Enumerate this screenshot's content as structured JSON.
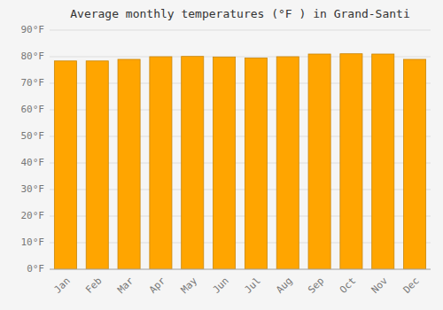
{
  "chart_data": {
    "type": "bar",
    "title": "Average monthly temperatures (°F ) in Grand-Santi",
    "categories": [
      "Jan",
      "Feb",
      "Mar",
      "Apr",
      "May",
      "Jun",
      "Jul",
      "Aug",
      "Sep",
      "Oct",
      "Nov",
      "Dec"
    ],
    "values": [
      78.4,
      78.4,
      79.0,
      80.0,
      80.1,
      79.9,
      79.5,
      80.0,
      81.0,
      81.1,
      81.0,
      79.0
    ],
    "color": "#FFA500",
    "ylim": [
      0,
      90
    ],
    "yticks": [
      {
        "value": 0,
        "label": "0°F"
      },
      {
        "value": 10,
        "label": "10°F"
      },
      {
        "value": 20,
        "label": "20°F"
      },
      {
        "value": 30,
        "label": "30°F"
      },
      {
        "value": 40,
        "label": "40°F"
      },
      {
        "value": 50,
        "label": "50°F"
      },
      {
        "value": 60,
        "label": "60°F"
      },
      {
        "value": 70,
        "label": "70°F"
      },
      {
        "value": 80,
        "label": "80°F"
      },
      {
        "value": 90,
        "label": "90°F"
      }
    ],
    "grid": true
  }
}
